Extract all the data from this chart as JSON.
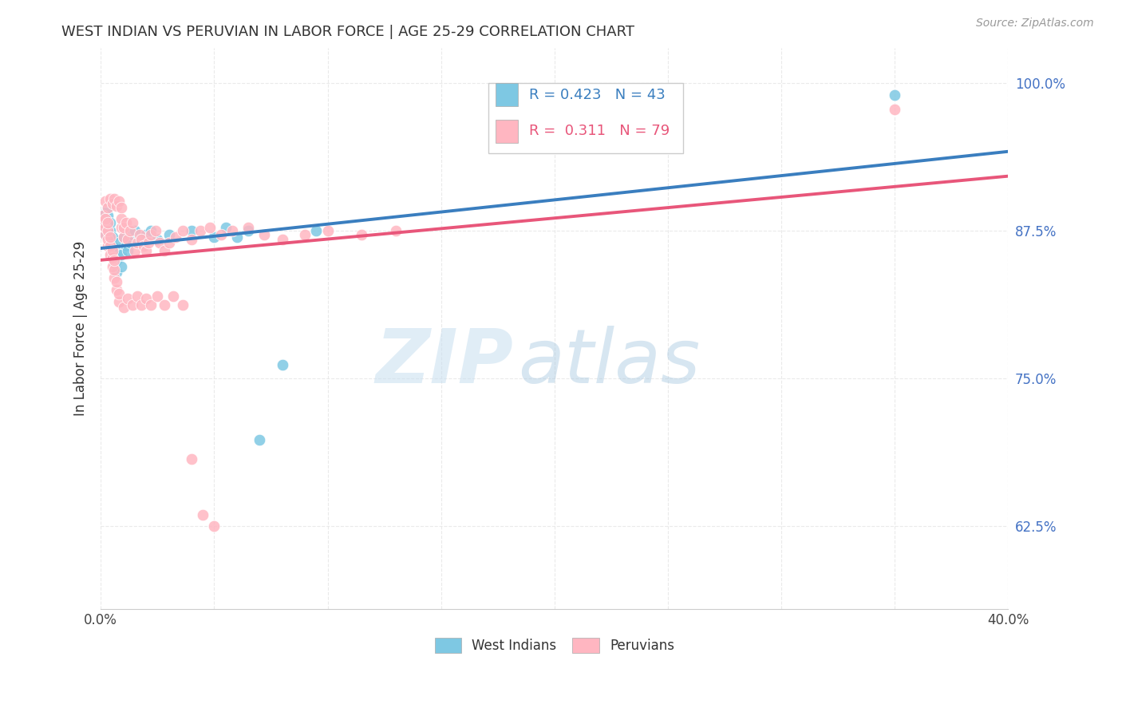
{
  "title": "WEST INDIAN VS PERUVIAN IN LABOR FORCE | AGE 25-29 CORRELATION CHART",
  "source": "Source: ZipAtlas.com",
  "ylabel": "In Labor Force | Age 25-29",
  "xlim": [
    0.0,
    0.4
  ],
  "ylim": [
    0.555,
    1.03
  ],
  "x_ticks": [
    0.0,
    0.05,
    0.1,
    0.15,
    0.2,
    0.25,
    0.3,
    0.35,
    0.4
  ],
  "x_tick_labels": [
    "0.0%",
    "",
    "",
    "",
    "",
    "",
    "",
    "",
    "40.0%"
  ],
  "y_ticks": [
    0.625,
    0.75,
    0.875,
    1.0
  ],
  "y_tick_labels": [
    "62.5%",
    "75.0%",
    "87.5%",
    "100.0%"
  ],
  "blue_color": "#7ec8e3",
  "pink_color": "#ffb6c1",
  "blue_line_color": "#3a7ebf",
  "pink_line_color": "#e8567a",
  "background_color": "#ffffff",
  "grid_color": "#e8e8e8",
  "wi_x": [
    0.001,
    0.001,
    0.002,
    0.002,
    0.002,
    0.003,
    0.003,
    0.003,
    0.003,
    0.004,
    0.004,
    0.004,
    0.005,
    0.005,
    0.005,
    0.006,
    0.006,
    0.007,
    0.007,
    0.008,
    0.008,
    0.009,
    0.009,
    0.01,
    0.011,
    0.012,
    0.013,
    0.014,
    0.015,
    0.017,
    0.02,
    0.022,
    0.025,
    0.03,
    0.04,
    0.05,
    0.055,
    0.06,
    0.065,
    0.07,
    0.08,
    0.095,
    0.35
  ],
  "wi_y": [
    0.88,
    0.888,
    0.872,
    0.88,
    0.89,
    0.875,
    0.88,
    0.888,
    0.895,
    0.87,
    0.875,
    0.882,
    0.855,
    0.862,
    0.87,
    0.848,
    0.855,
    0.84,
    0.85,
    0.858,
    0.865,
    0.845,
    0.855,
    0.87,
    0.862,
    0.858,
    0.865,
    0.872,
    0.875,
    0.868,
    0.872,
    0.875,
    0.868,
    0.872,
    0.875,
    0.87,
    0.878,
    0.87,
    0.875,
    0.698,
    0.762,
    0.875,
    0.99
  ],
  "peru_x": [
    0.001,
    0.001,
    0.002,
    0.002,
    0.002,
    0.003,
    0.003,
    0.003,
    0.003,
    0.004,
    0.004,
    0.004,
    0.005,
    0.005,
    0.005,
    0.006,
    0.006,
    0.006,
    0.007,
    0.007,
    0.008,
    0.008,
    0.009,
    0.009,
    0.01,
    0.01,
    0.011,
    0.012,
    0.013,
    0.014,
    0.015,
    0.016,
    0.017,
    0.018,
    0.019,
    0.02,
    0.021,
    0.022,
    0.024,
    0.026,
    0.028,
    0.03,
    0.033,
    0.036,
    0.04,
    0.044,
    0.048,
    0.053,
    0.058,
    0.065,
    0.072,
    0.08,
    0.09,
    0.1,
    0.115,
    0.13,
    0.002,
    0.003,
    0.004,
    0.005,
    0.006,
    0.007,
    0.008,
    0.009,
    0.01,
    0.012,
    0.014,
    0.016,
    0.018,
    0.02,
    0.022,
    0.025,
    0.028,
    0.032,
    0.036,
    0.04,
    0.045,
    0.05,
    0.35
  ],
  "peru_y": [
    0.882,
    0.888,
    0.872,
    0.878,
    0.885,
    0.862,
    0.868,
    0.875,
    0.882,
    0.855,
    0.862,
    0.87,
    0.845,
    0.852,
    0.858,
    0.835,
    0.842,
    0.85,
    0.825,
    0.832,
    0.815,
    0.822,
    0.878,
    0.885,
    0.87,
    0.878,
    0.882,
    0.868,
    0.875,
    0.882,
    0.858,
    0.865,
    0.872,
    0.868,
    0.862,
    0.858,
    0.865,
    0.872,
    0.875,
    0.865,
    0.858,
    0.865,
    0.87,
    0.875,
    0.868,
    0.875,
    0.878,
    0.872,
    0.875,
    0.878,
    0.872,
    0.868,
    0.872,
    0.875,
    0.872,
    0.875,
    0.9,
    0.895,
    0.902,
    0.898,
    0.902,
    0.896,
    0.9,
    0.895,
    0.81,
    0.818,
    0.812,
    0.82,
    0.812,
    0.818,
    0.812,
    0.82,
    0.812,
    0.82,
    0.812,
    0.682,
    0.635,
    0.625,
    0.978
  ],
  "watermark_zip": "ZIP",
  "watermark_atlas": "atlas",
  "legend_blue_r": "R = 0.423",
  "legend_blue_n": "N = 43",
  "legend_pink_r": "R =  0.311",
  "legend_pink_n": "N = 79"
}
